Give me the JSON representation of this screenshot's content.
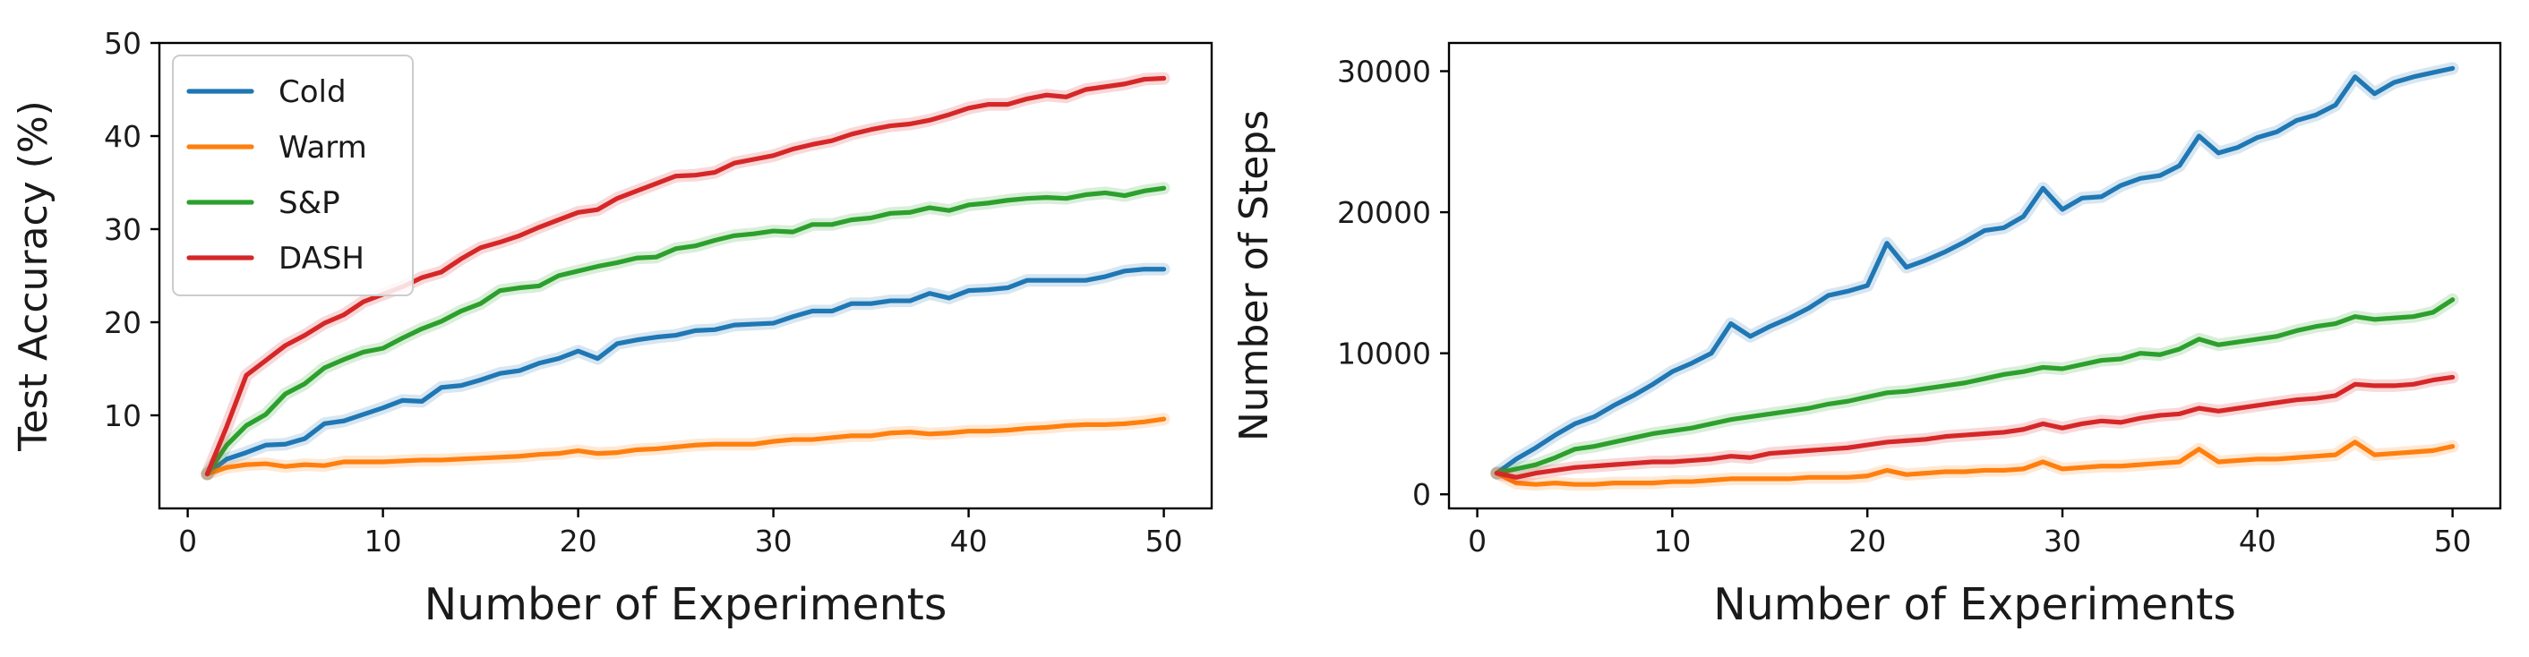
{
  "chart_data": [
    {
      "type": "line",
      "title": "",
      "xlabel": "Number of Experiments",
      "ylabel": "Test Accuracy (%)",
      "xlim": [
        -1.45,
        52.45
      ],
      "ylim": [
        0,
        50
      ],
      "xticks": [
        0,
        10,
        20,
        30,
        40,
        50
      ],
      "yticks": [
        10,
        20,
        30,
        40,
        50
      ],
      "grid": false,
      "legend": "top-left",
      "x": [
        1,
        2,
        3,
        4,
        5,
        6,
        7,
        8,
        9,
        10,
        11,
        12,
        13,
        14,
        15,
        16,
        17,
        18,
        19,
        20,
        21,
        22,
        23,
        24,
        25,
        26,
        27,
        28,
        29,
        30,
        31,
        32,
        33,
        34,
        35,
        36,
        37,
        38,
        39,
        40,
        41,
        42,
        43,
        44,
        45,
        46,
        47,
        48,
        49,
        50
      ],
      "series": [
        {
          "name": "Cold",
          "color": "#1f77b4",
          "values": [
            3.7,
            5.3,
            6.0,
            6.8,
            6.9,
            7.5,
            9.1,
            9.4,
            10.1,
            10.8,
            11.6,
            11.5,
            13.0,
            13.2,
            13.8,
            14.5,
            14.8,
            15.6,
            16.1,
            16.9,
            16.1,
            17.7,
            18.1,
            18.4,
            18.6,
            19.1,
            19.2,
            19.7,
            19.8,
            19.9,
            20.6,
            21.2,
            21.2,
            22.0,
            22.0,
            22.3,
            22.3,
            23.1,
            22.6,
            23.4,
            23.5,
            23.7,
            24.5,
            24.5,
            24.5,
            24.5,
            24.9,
            25.5,
            25.7,
            25.7
          ]
        },
        {
          "name": "Warm",
          "color": "#ff7f0e",
          "values": [
            3.7,
            4.4,
            4.7,
            4.8,
            4.5,
            4.7,
            4.6,
            5.0,
            5.0,
            5.0,
            5.1,
            5.2,
            5.2,
            5.3,
            5.4,
            5.5,
            5.6,
            5.8,
            5.9,
            6.2,
            5.9,
            6.0,
            6.3,
            6.4,
            6.6,
            6.8,
            6.9,
            6.9,
            6.9,
            7.2,
            7.4,
            7.4,
            7.6,
            7.8,
            7.8,
            8.1,
            8.2,
            8.0,
            8.1,
            8.3,
            8.3,
            8.4,
            8.6,
            8.7,
            8.9,
            9.0,
            9.0,
            9.1,
            9.3,
            9.6
          ]
        },
        {
          "name": "S&P",
          "color": "#2ca02c",
          "values": [
            3.7,
            6.8,
            8.9,
            10.1,
            12.3,
            13.4,
            15.1,
            16.0,
            16.8,
            17.2,
            18.3,
            19.3,
            20.1,
            21.2,
            22.0,
            23.4,
            23.7,
            23.9,
            25.0,
            25.5,
            26.0,
            26.4,
            26.9,
            27.0,
            27.9,
            28.2,
            28.8,
            29.3,
            29.5,
            29.8,
            29.7,
            30.5,
            30.5,
            31.0,
            31.2,
            31.7,
            31.8,
            32.3,
            32.0,
            32.6,
            32.8,
            33.1,
            33.3,
            33.4,
            33.3,
            33.7,
            33.9,
            33.6,
            34.1,
            34.4
          ]
        },
        {
          "name": "DASH",
          "color": "#d62728",
          "values": [
            3.7,
            8.8,
            14.3,
            15.9,
            17.5,
            18.6,
            19.9,
            20.8,
            22.2,
            23.0,
            23.8,
            24.8,
            25.4,
            26.8,
            28.0,
            28.6,
            29.3,
            30.2,
            31.0,
            31.8,
            32.1,
            33.3,
            34.1,
            34.9,
            35.7,
            35.8,
            36.1,
            37.1,
            37.5,
            37.9,
            38.6,
            39.1,
            39.5,
            40.2,
            40.7,
            41.1,
            41.3,
            41.7,
            42.3,
            43.0,
            43.4,
            43.4,
            44.0,
            44.4,
            44.2,
            45.0,
            45.3,
            45.6,
            46.1,
            46.2
          ]
        }
      ]
    },
    {
      "type": "line",
      "title": "",
      "xlabel": "Number of Experiments",
      "ylabel": "Number of Steps",
      "xlim": [
        -1.45,
        52.45
      ],
      "ylim": [
        -1000,
        32000
      ],
      "xticks": [
        0,
        10,
        20,
        30,
        40,
        50
      ],
      "yticks": [
        0,
        10000,
        20000,
        30000
      ],
      "grid": false,
      "legend": "none",
      "x": [
        1,
        2,
        3,
        4,
        5,
        6,
        7,
        8,
        9,
        10,
        11,
        12,
        13,
        14,
        15,
        16,
        17,
        18,
        19,
        20,
        21,
        22,
        23,
        24,
        25,
        26,
        27,
        28,
        29,
        30,
        31,
        32,
        33,
        34,
        35,
        36,
        37,
        38,
        39,
        40,
        41,
        42,
        43,
        44,
        45,
        46,
        47,
        48,
        49,
        50
      ],
      "series": [
        {
          "name": "Cold",
          "color": "#1f77b4",
          "values": [
            1500,
            2500,
            3300,
            4200,
            5000,
            5500,
            6300,
            7000,
            7800,
            8700,
            9300,
            10000,
            12100,
            11200,
            11900,
            12500,
            13200,
            14100,
            14400,
            14800,
            17800,
            16100,
            16600,
            17200,
            17900,
            18700,
            18900,
            19700,
            21700,
            20200,
            21000,
            21100,
            21900,
            22400,
            22600,
            23300,
            25400,
            24200,
            24600,
            25300,
            25700,
            26500,
            26900,
            27600,
            29600,
            28400,
            29200,
            29600,
            29900,
            30200
          ]
        },
        {
          "name": "Warm",
          "color": "#ff7f0e",
          "values": [
            1500,
            800,
            700,
            800,
            700,
            700,
            800,
            800,
            800,
            900,
            900,
            1000,
            1100,
            1100,
            1100,
            1100,
            1200,
            1200,
            1200,
            1300,
            1700,
            1400,
            1500,
            1600,
            1600,
            1700,
            1700,
            1800,
            2300,
            1800,
            1900,
            2000,
            2000,
            2100,
            2200,
            2300,
            3200,
            2300,
            2400,
            2500,
            2500,
            2600,
            2700,
            2800,
            3700,
            2800,
            2900,
            3000,
            3100,
            3400
          ]
        },
        {
          "name": "S&P",
          "color": "#2ca02c",
          "values": [
            1500,
            1800,
            2100,
            2600,
            3200,
            3400,
            3700,
            4000,
            4300,
            4500,
            4700,
            5000,
            5300,
            5500,
            5700,
            5900,
            6100,
            6400,
            6600,
            6900,
            7200,
            7300,
            7500,
            7700,
            7900,
            8200,
            8500,
            8700,
            9000,
            8900,
            9200,
            9500,
            9600,
            10000,
            9900,
            10300,
            11000,
            10600,
            10800,
            11000,
            11200,
            11600,
            11900,
            12100,
            12600,
            12400,
            12500,
            12600,
            12900,
            13800
          ]
        },
        {
          "name": "DASH",
          "color": "#d62728",
          "values": [
            1500,
            1200,
            1500,
            1700,
            1900,
            2000,
            2100,
            2200,
            2300,
            2300,
            2400,
            2500,
            2700,
            2600,
            2900,
            3000,
            3100,
            3200,
            3300,
            3500,
            3700,
            3800,
            3900,
            4100,
            4200,
            4300,
            4400,
            4600,
            5000,
            4700,
            5000,
            5200,
            5100,
            5400,
            5600,
            5700,
            6100,
            5900,
            6100,
            6300,
            6500,
            6700,
            6800,
            7000,
            7800,
            7700,
            7700,
            7800,
            8100,
            8300
          ]
        }
      ]
    }
  ]
}
